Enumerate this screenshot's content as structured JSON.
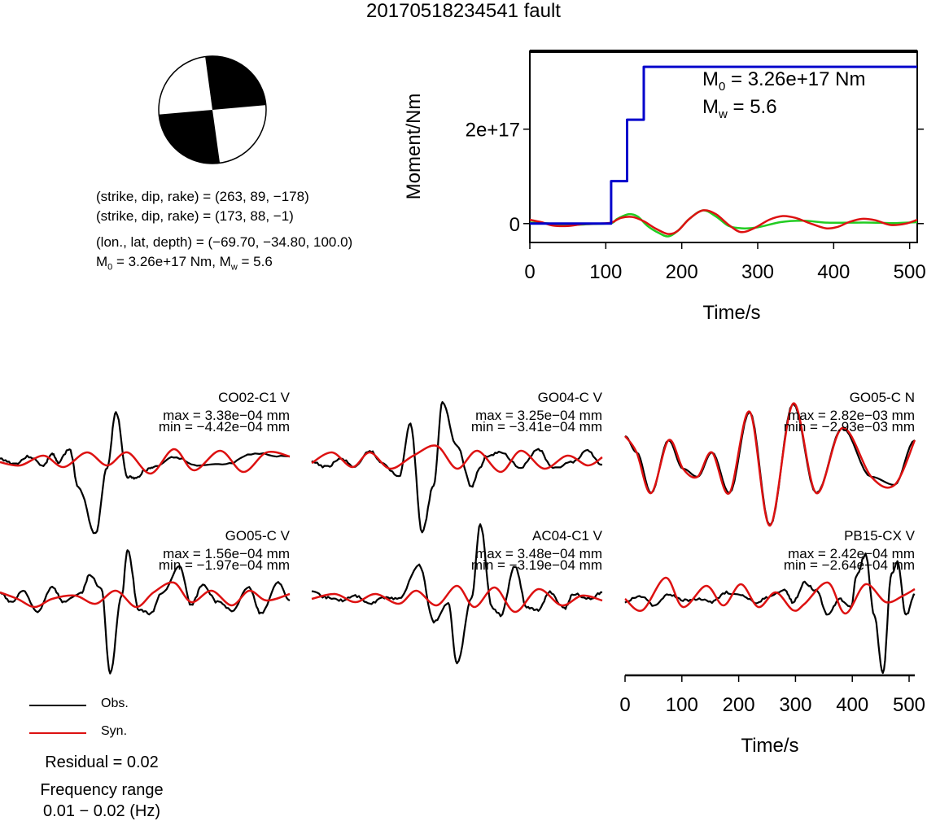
{
  "title": "20170518234541 fault",
  "info": {
    "plane1": "(strike, dip, rake) = (263, 89, −178)",
    "plane2": "(strike, dip, rake) = (173, 88, −1)",
    "location": "(lon., lat, depth) = (−69.70, −34.80, 100.0)",
    "moment_prefix": "M",
    "moment_sub": "0",
    "moment_value": " = 3.26e+17 Nm, M",
    "mw_sub": "w",
    "mw_value": " = 5.6"
  },
  "moment_annotation": {
    "m0_prefix": "M",
    "m0_sub": "0",
    "m0_value": " = 3.26e+17 Nm",
    "mw_prefix": "M",
    "mw_sub": "w",
    "mw_value": " = 5.6"
  },
  "legend": {
    "obs": "Obs.",
    "syn": "Syn."
  },
  "residual": "Residual = 0.02",
  "frequency_title": "Frequency range",
  "frequency_value": "0.01 − 0.02 (Hz)",
  "colors": {
    "obs": "#000000",
    "syn": "#dd1111",
    "moment": "#0000cc",
    "green": "#22cc22"
  },
  "chart_data": [
    {
      "type": "line",
      "name": "moment-function",
      "xlabel": "Time/s",
      "ylabel": "Moment/Nm",
      "xlim": [
        0,
        510
      ],
      "ylim": [
        -4e+16,
        3.65e+17
      ],
      "xticks": [
        0,
        100,
        200,
        300,
        400,
        500
      ],
      "yticks": [
        {
          "v": 0,
          "label": "0"
        },
        {
          "v": 2e+17,
          "label": "2e+17"
        }
      ],
      "series": [
        {
          "color": "#0000cc",
          "x": [
            0,
            107,
            107,
            128,
            128,
            139,
            139,
            150,
            150,
            510
          ],
          "y": [
            0,
            0,
            9e+16,
            9e+16,
            2.2e+17,
            2.2e+17,
            2.2e+17,
            2.2e+17,
            3.32e+17,
            3.32e+17
          ]
        },
        {
          "color": "#22cc22",
          "x": [
            0,
            20,
            50,
            80,
            107,
            115,
            130,
            142,
            155,
            170,
            182,
            195,
            210,
            228,
            245,
            262,
            280,
            300,
            330,
            360,
            390,
            420,
            450,
            480,
            510
          ],
          "y": [
            2000000000000000.0,
            1000000000000000.0,
            -3000000000000000.0,
            -1000000000000000.0,
            1000000000000000.0,
            1e+16,
            2e+16,
            1.5e+16,
            -5000000000000000.0,
            -2e+16,
            -2.7e+16,
            -1.5e+16,
            1e+16,
            2.8e+16,
            1.5e+16,
            -5000000000000000.0,
            -1e+16,
            -8000000000000000.0,
            3000000000000000.0,
            6000000000000000.0,
            2000000000000000.0,
            2000000000000000.0,
            2000000000000000.0,
            1000000000000000.0,
            3000000000000000.0
          ]
        },
        {
          "color": "#dd1111",
          "x": [
            0,
            15,
            30,
            50,
            70,
            90,
            107,
            120,
            135,
            150,
            165,
            182,
            195,
            210,
            228,
            245,
            262,
            278,
            295,
            315,
            333,
            350,
            370,
            390,
            405,
            420,
            437,
            455,
            475,
            495,
            510
          ],
          "y": [
            8000000000000000.0,
            3000000000000000.0,
            -4000000000000000.0,
            -5000000000000000.0,
            -1000000000000000.0,
            0.0,
            2000000000000000.0,
            1.2e+16,
            1.4e+16,
            5000000000000000.0,
            -1e+16,
            -2.2e+16,
            -1.5e+16,
            1e+16,
            2.8e+16,
            2e+16,
            -3000000000000000.0,
            -1.8e+16,
            -1e+16,
            8000000000000000.0,
            1.6e+16,
            1.2e+16,
            0.0,
            -1e+16,
            -7000000000000000.0,
            3000000000000000.0,
            1e+16,
            7000000000000000.0,
            -3000000000000000.0,
            0.0,
            8000000000000000.0
          ]
        }
      ]
    },
    {
      "type": "line",
      "name": "waveforms",
      "xlabel": "Time/s",
      "xlim": [
        0,
        510
      ],
      "xticks": [
        0,
        100,
        200,
        300,
        400,
        500
      ],
      "panels": [
        {
          "station": "CO02-C1 V",
          "max": "max = 3.38e−04 mm",
          "min": "min = −4.42e−04 mm"
        },
        {
          "station": "GO04-C V",
          "max": "max = 3.25e−04 mm",
          "min": "min = −3.41e−04 mm"
        },
        {
          "station": "GO05-C N",
          "max": "max = 2.82e−03 mm",
          "min": "min = −2.93e−03 mm"
        },
        {
          "station": "GO05-C V",
          "max": "max = 1.56e−04 mm",
          "min": "min = −1.97e−04 mm"
        },
        {
          "station": "AC04-C1 V",
          "max": "max = 3.48e−04 mm",
          "min": "min = −3.19e−04 mm"
        },
        {
          "station": "PB15-CX V",
          "max": "max = 2.42e−04 mm",
          "min": "min = −2.64e−04 mm"
        }
      ]
    }
  ]
}
